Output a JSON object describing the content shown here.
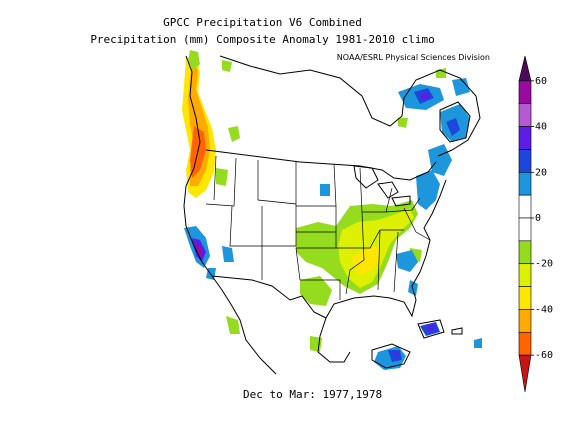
{
  "title_line1": "GPCC Precipitation V6 Combined",
  "title_line2": "Precipitation (mm) Composite Anomaly 1981-2010 climo",
  "credit": "NOAA/ESRL Physical Sciences Division",
  "period": "Dec to Mar: 1977,1978",
  "colorbar": {
    "unit": "mm",
    "ticks": [
      "60",
      "40",
      "20",
      "0",
      "-20",
      "-40",
      "-60"
    ],
    "bins": [
      {
        "label": "60 to 70",
        "color": "#4b0a5a"
      },
      {
        "label": "50 to 60",
        "color": "#9b0aa0"
      },
      {
        "label": "40 to 50",
        "color": "#b45ad2"
      },
      {
        "label": "30 to 40",
        "color": "#5a1ee6"
      },
      {
        "label": "20 to 30",
        "color": "#1e46dc"
      },
      {
        "label": "10 to 20",
        "color": "#1e96dc"
      },
      {
        "label": "0 to 10",
        "color": "#ffffff"
      },
      {
        "label": "-10 to 0",
        "color": "#ffffff"
      },
      {
        "label": "-20 to -10",
        "color": "#96dc1e"
      },
      {
        "label": "-30 to -20",
        "color": "#dcf000"
      },
      {
        "label": "-40 to -30",
        "color": "#ffe600"
      },
      {
        "label": "-50 to -40",
        "color": "#ffaa00"
      },
      {
        "label": "-60 to -50",
        "color": "#ff6400"
      },
      {
        "label": "-70 to -60",
        "color": "#c81414"
      }
    ]
  },
  "colors": {
    "green": "#96dc1e",
    "yellow_green": "#dcf000",
    "yellow": "#ffe600",
    "orange": "#ffaa00",
    "red_orange": "#ff6400",
    "light_blue": "#1e96dc",
    "blue": "#1e46dc",
    "purple": "#5a1ee6",
    "magenta": "#9b0aa0"
  }
}
